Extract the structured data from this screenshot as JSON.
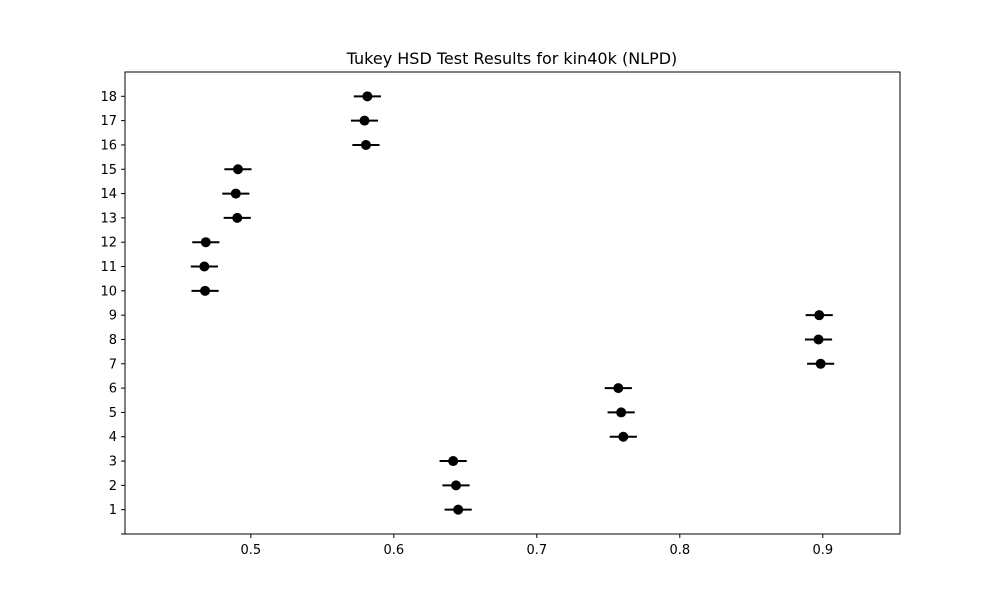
{
  "chart_data": {
    "type": "scatter",
    "title": "Tukey HSD Test Results for kin40k (NLPD)",
    "xlabel": "",
    "ylabel": "",
    "xlim": [
      0.412,
      0.954
    ],
    "ylim": [
      0,
      19
    ],
    "x_ticks": [
      0.5,
      0.6,
      0.7,
      0.8,
      0.9
    ],
    "y_ticks": [
      0,
      1,
      2,
      3,
      4,
      5,
      6,
      7,
      8,
      9,
      10,
      11,
      12,
      13,
      14,
      15,
      16,
      17,
      18
    ],
    "y_tick_labels": [
      "",
      "1",
      "2",
      "3",
      "4",
      "5",
      "6",
      "7",
      "8",
      "9",
      "10",
      "11",
      "12",
      "13",
      "14",
      "15",
      "16",
      "17",
      "18"
    ],
    "grid": false,
    "marker_color": "#000000",
    "points": [
      {
        "y": 1,
        "x": 0.645,
        "lo": 0.6355,
        "hi": 0.6545
      },
      {
        "y": 2,
        "x": 0.6435,
        "lo": 0.634,
        "hi": 0.653
      },
      {
        "y": 3,
        "x": 0.6415,
        "lo": 0.632,
        "hi": 0.651
      },
      {
        "y": 4,
        "x": 0.7605,
        "lo": 0.751,
        "hi": 0.77
      },
      {
        "y": 5,
        "x": 0.759,
        "lo": 0.7495,
        "hi": 0.7685
      },
      {
        "y": 6,
        "x": 0.757,
        "lo": 0.7475,
        "hi": 0.7665
      },
      {
        "y": 7,
        "x": 0.8985,
        "lo": 0.889,
        "hi": 0.908
      },
      {
        "y": 8,
        "x": 0.897,
        "lo": 0.8875,
        "hi": 0.9065
      },
      {
        "y": 9,
        "x": 0.8975,
        "lo": 0.888,
        "hi": 0.907
      },
      {
        "y": 10,
        "x": 0.468,
        "lo": 0.4585,
        "hi": 0.4775
      },
      {
        "y": 11,
        "x": 0.4675,
        "lo": 0.458,
        "hi": 0.477
      },
      {
        "y": 12,
        "x": 0.4685,
        "lo": 0.459,
        "hi": 0.478
      },
      {
        "y": 13,
        "x": 0.4905,
        "lo": 0.481,
        "hi": 0.5
      },
      {
        "y": 14,
        "x": 0.4895,
        "lo": 0.48,
        "hi": 0.499
      },
      {
        "y": 15,
        "x": 0.491,
        "lo": 0.4815,
        "hi": 0.5005
      },
      {
        "y": 16,
        "x": 0.5805,
        "lo": 0.571,
        "hi": 0.59
      },
      {
        "y": 17,
        "x": 0.5795,
        "lo": 0.57,
        "hi": 0.589
      },
      {
        "y": 18,
        "x": 0.5815,
        "lo": 0.572,
        "hi": 0.591
      }
    ]
  }
}
